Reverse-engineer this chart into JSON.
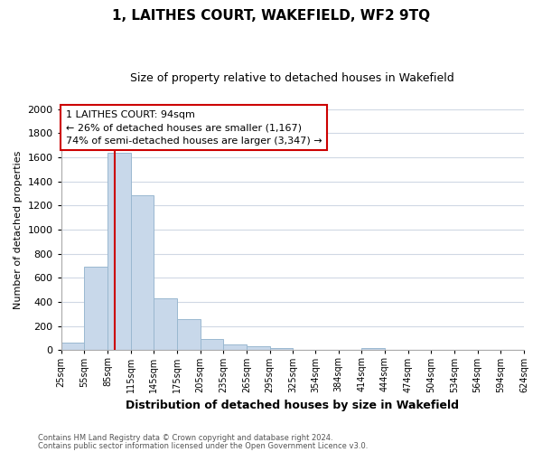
{
  "title": "1, LAITHES COURT, WAKEFIELD, WF2 9TQ",
  "subtitle": "Size of property relative to detached houses in Wakefield",
  "xlabel": "Distribution of detached houses by size in Wakefield",
  "ylabel": "Number of detached properties",
  "bar_color": "#c8d8ea",
  "bar_edge_color": "#9ab8d0",
  "vline_x": 94,
  "vline_color": "#cc0000",
  "annotation_title": "1 LAITHES COURT: 94sqm",
  "annotation_line1": "← 26% of detached houses are smaller (1,167)",
  "annotation_line2": "74% of semi-detached houses are larger (3,347) →",
  "annotation_box_color": "#ffffff",
  "annotation_box_edge": "#cc0000",
  "bin_edges": [
    25,
    55,
    85,
    115,
    145,
    175,
    205,
    235,
    265,
    295,
    325,
    354,
    384,
    414,
    444,
    474,
    504,
    534,
    564,
    594,
    624
  ],
  "bar_heights": [
    65,
    690,
    1640,
    1285,
    430,
    255,
    90,
    50,
    30,
    20,
    0,
    0,
    0,
    15,
    0,
    0,
    0,
    0,
    0,
    0
  ],
  "ylim": [
    0,
    2000
  ],
  "yticks": [
    0,
    200,
    400,
    600,
    800,
    1000,
    1200,
    1400,
    1600,
    1800,
    2000
  ],
  "xtick_labels": [
    "25sqm",
    "55sqm",
    "85sqm",
    "115sqm",
    "145sqm",
    "175sqm",
    "205sqm",
    "235sqm",
    "265sqm",
    "295sqm",
    "325sqm",
    "354sqm",
    "384sqm",
    "414sqm",
    "444sqm",
    "474sqm",
    "504sqm",
    "534sqm",
    "564sqm",
    "594sqm",
    "624sqm"
  ],
  "footnote1": "Contains HM Land Registry data © Crown copyright and database right 2024.",
  "footnote2": "Contains public sector information licensed under the Open Government Licence v3.0.",
  "background_color": "#ffffff",
  "grid_color": "#d0d8e4"
}
